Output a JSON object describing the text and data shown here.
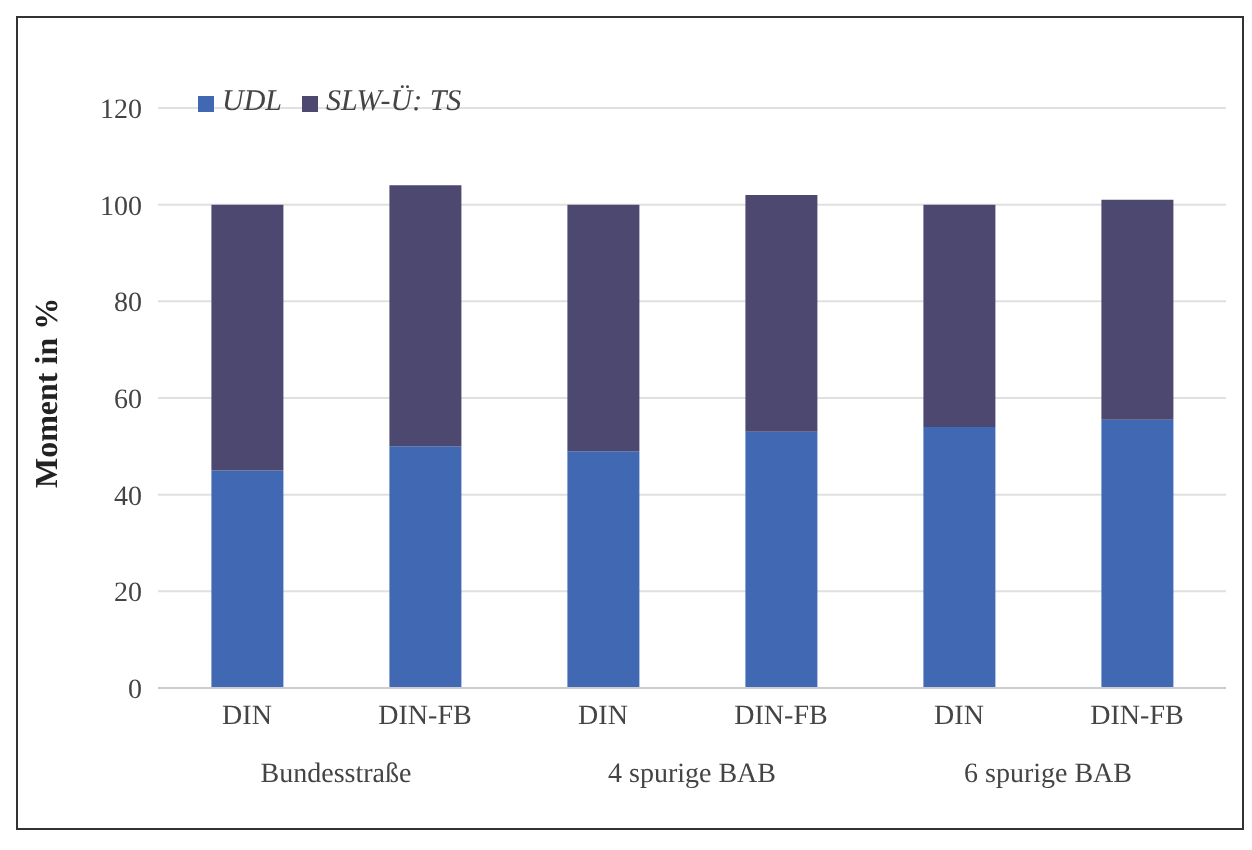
{
  "chart_data": {
    "type": "bar",
    "stacked": true,
    "ylabel": "Moment in %",
    "categories": [
      "DIN",
      "DIN-FB",
      "DIN",
      "DIN-FB",
      "DIN",
      "DIN-FB"
    ],
    "annotations": [
      "Bundesstraße",
      "4 spurige BAB",
      "6 spurige BAB"
    ],
    "series": [
      {
        "name": "UDL",
        "color": "#4169b3",
        "values": [
          45,
          50,
          49,
          53,
          54,
          55.5
        ]
      },
      {
        "name": "SLW-Ü: TS",
        "color": "#4d4870",
        "values": [
          55,
          54,
          51,
          49,
          46,
          45.5
        ]
      }
    ],
    "ylim": [
      0,
      120
    ],
    "yticks": [
      0,
      20,
      40,
      60,
      80,
      100,
      120
    ],
    "grid": "y",
    "legend": "top left"
  }
}
